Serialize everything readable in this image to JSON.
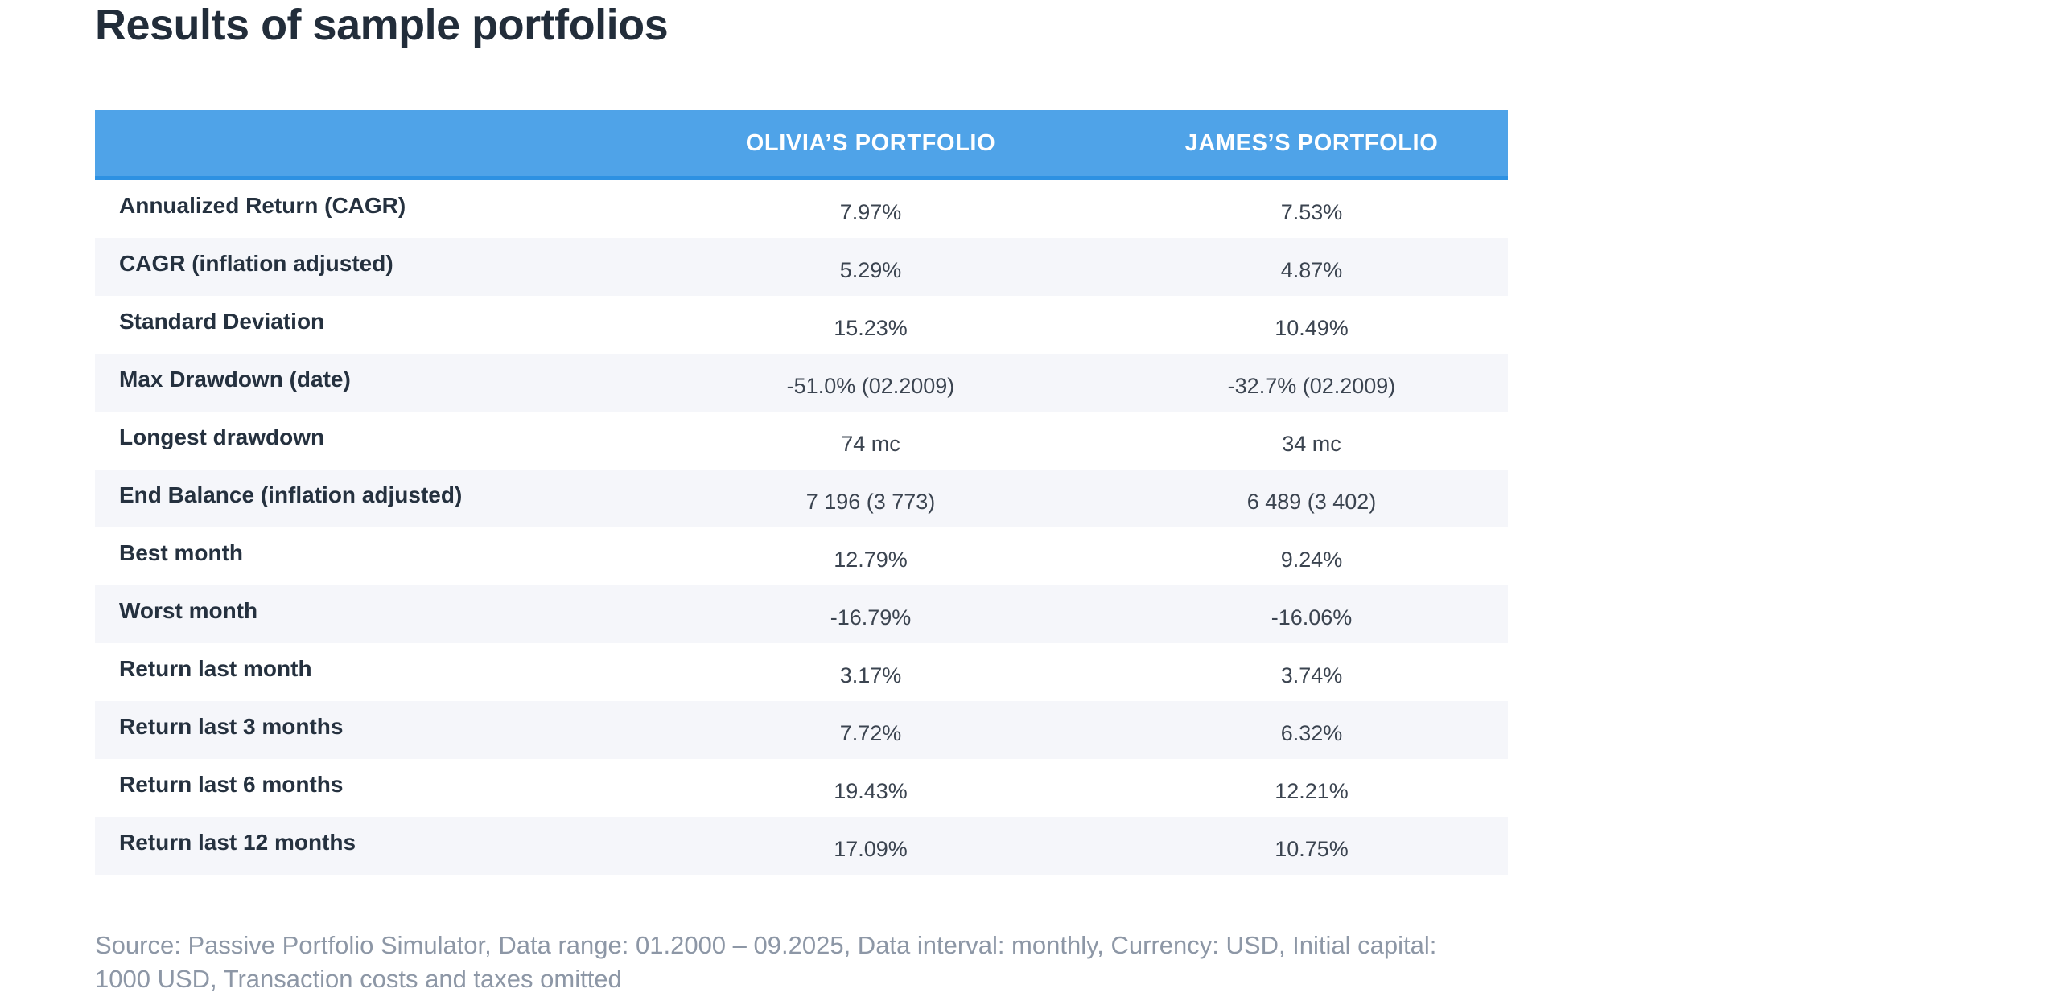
{
  "page": {
    "title": "Results of sample portfolios",
    "source_note": "Source: Passive Portfolio Simulator, Data range: 01.2000 – 09.2025, Data interval: monthly, Currency: USD, Initial capital: 1000 USD, Transaction costs and taxes omitted"
  },
  "colors": {
    "header_background": "#4fa3e8",
    "header_border": "#2d91e2",
    "row_alternate": "#f5f6fa",
    "title_text": "#222d3a",
    "label_text": "#25313f",
    "value_text": "#3b4450",
    "source_text": "#8d97a6"
  },
  "chart_data": {
    "type": "table",
    "title": "Results of sample portfolios",
    "columns": [
      "",
      "OLIVIA’S PORTFOLIO",
      "JAMES’S PORTFOLIO"
    ],
    "rows": [
      {
        "metric": "Annualized Return (CAGR)",
        "values": [
          "7.97%",
          "7.53%"
        ]
      },
      {
        "metric": "CAGR (inflation adjusted)",
        "values": [
          "5.29%",
          "4.87%"
        ]
      },
      {
        "metric": "Standard Deviation",
        "values": [
          "15.23%",
          "10.49%"
        ]
      },
      {
        "metric": "Max Drawdown (date)",
        "values": [
          "-51.0% (02.2009)",
          "-32.7% (02.2009)"
        ]
      },
      {
        "metric": "Longest drawdown",
        "values": [
          "74 mc",
          "34 mc"
        ]
      },
      {
        "metric": "End Balance (inflation adjusted)",
        "values": [
          "7 196 (3 773)",
          "6 489 (3 402)"
        ]
      },
      {
        "metric": "Best month",
        "values": [
          "12.79%",
          "9.24%"
        ]
      },
      {
        "metric": "Worst month",
        "values": [
          "-16.79%",
          "-16.06%"
        ]
      },
      {
        "metric": "Return last month",
        "values": [
          "3.17%",
          "3.74%"
        ]
      },
      {
        "metric": "Return last 3 months",
        "values": [
          "7.72%",
          "6.32%"
        ]
      },
      {
        "metric": "Return last 6 months",
        "values": [
          "19.43%",
          "12.21%"
        ]
      },
      {
        "metric": "Return last 12 months",
        "values": [
          "17.09%",
          "10.75%"
        ]
      }
    ]
  }
}
